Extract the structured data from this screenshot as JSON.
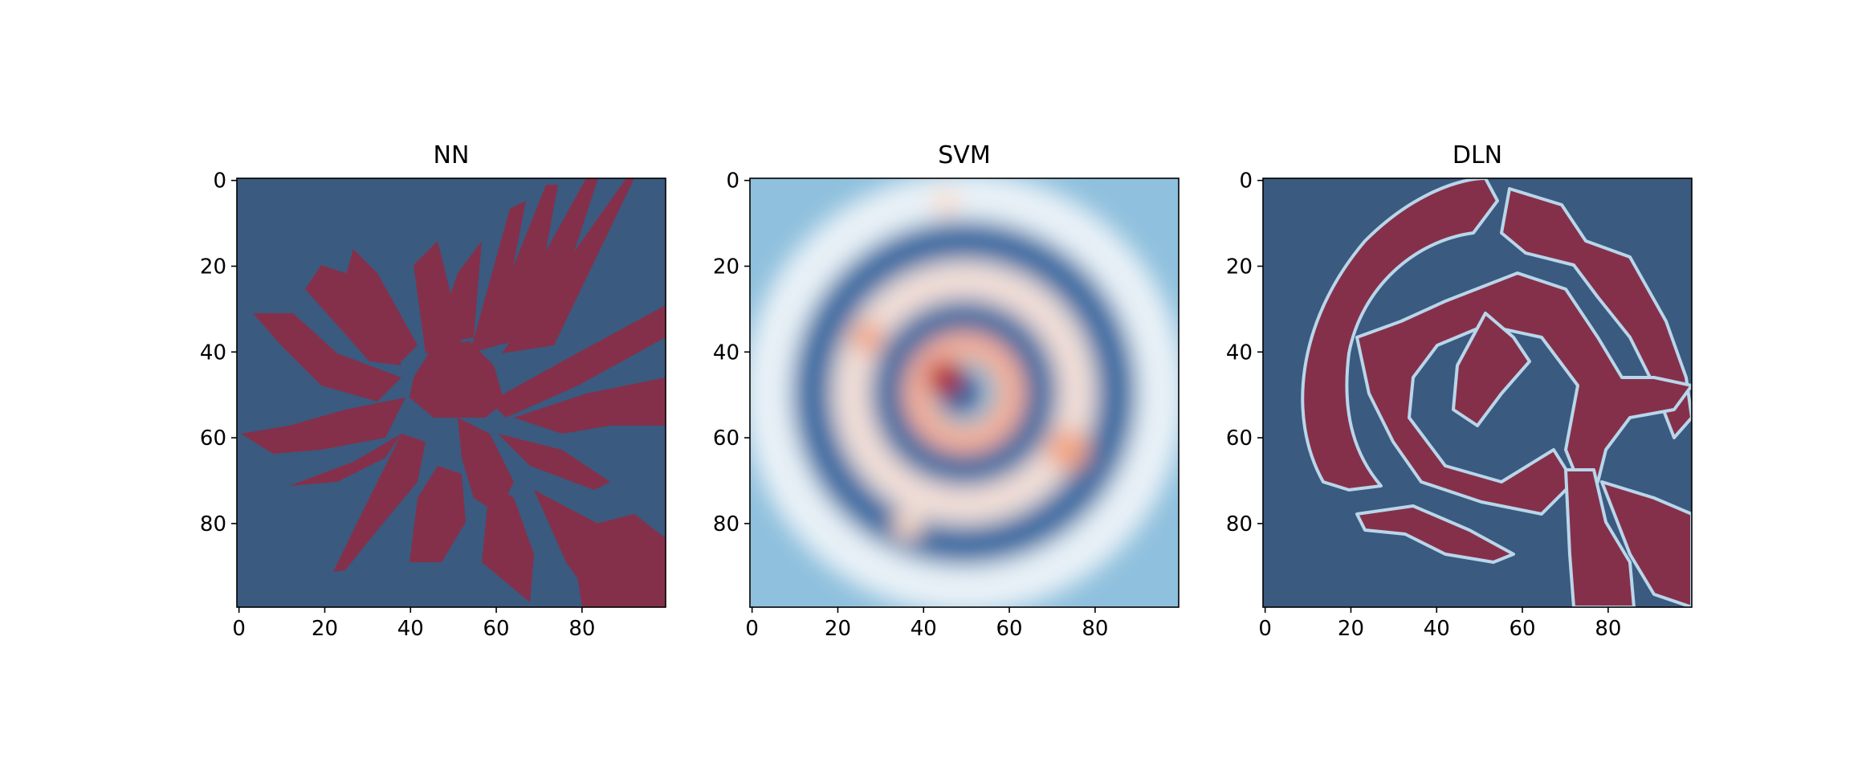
{
  "figure": {
    "background": "#ffffff"
  },
  "chart_data": [
    {
      "type": "heatmap",
      "title": "NN",
      "xlabel": "",
      "ylabel": "",
      "xlim": [
        0,
        99
      ],
      "ylim": [
        99,
        0
      ],
      "xticks": [
        0,
        20,
        40,
        60,
        80
      ],
      "yticks": [
        0,
        20,
        40,
        60,
        80
      ],
      "grid_size": [
        100,
        100
      ],
      "colormap": "RdBu_r",
      "pattern": "binary decision regions (two classes)",
      "class_colors": [
        "#3a5a80",
        "#85304a"
      ]
    },
    {
      "type": "heatmap",
      "title": "SVM",
      "xlabel": "",
      "ylabel": "",
      "xlim": [
        0,
        99
      ],
      "ylim": [
        99,
        0
      ],
      "xticks": [
        0,
        20,
        40,
        60,
        80
      ],
      "yticks": [
        0,
        20,
        40,
        60,
        80
      ],
      "grid_size": [
        100,
        100
      ],
      "colormap": "RdBu_r",
      "pattern": "continuous two-arm spiral decision function",
      "colors": {
        "low": "#2f5e95",
        "mid": "#f7f7f7",
        "high": "#b2182b",
        "edge": "#92c5de"
      }
    },
    {
      "type": "heatmap",
      "title": "DLN",
      "xlabel": "",
      "ylabel": "",
      "xlim": [
        0,
        99
      ],
      "ylim": [
        99,
        0
      ],
      "xticks": [
        0,
        20,
        40,
        60,
        80
      ],
      "yticks": [
        0,
        20,
        40,
        60,
        80
      ],
      "grid_size": [
        100,
        100
      ],
      "colormap": "RdBu_r",
      "pattern": "piecewise spiral decision regions with sharp boundaries",
      "class_colors": [
        "#3a5a80",
        "#85304a"
      ]
    }
  ]
}
